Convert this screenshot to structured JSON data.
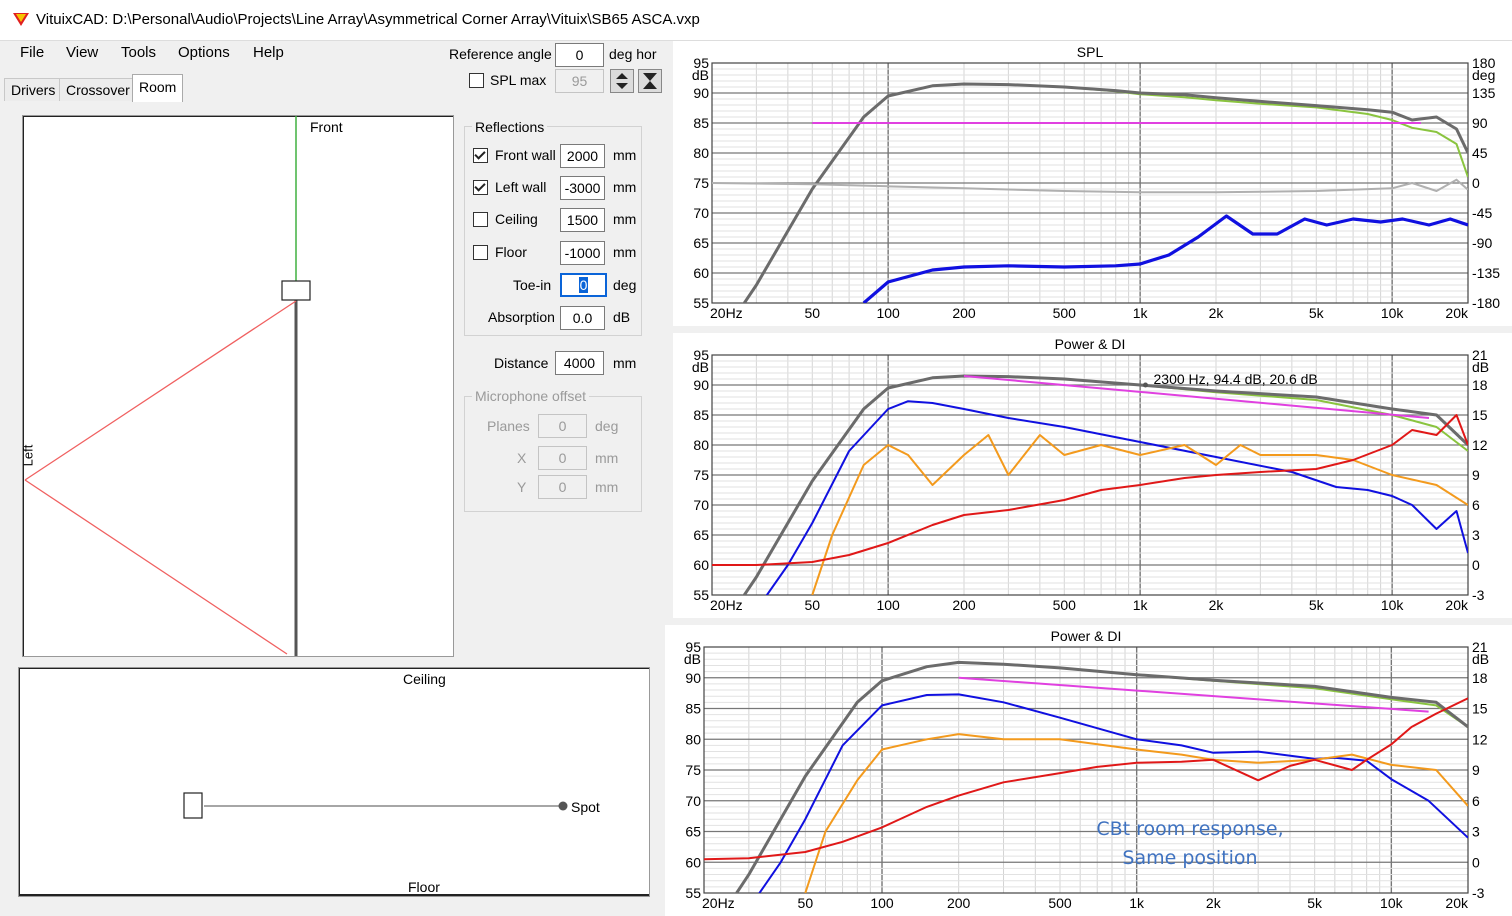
{
  "window": {
    "title": "VituixCAD: D:\\Personal\\Audio\\Projects\\Line Array\\Asymmetrical Corner Array\\Vituix\\SB65 ASCA.vxp",
    "icon": "vituixcad-logo-icon"
  },
  "menu": [
    "File",
    "View",
    "Tools",
    "Options",
    "Help"
  ],
  "tabs": [
    "Drivers",
    "Crossover",
    "Room"
  ],
  "active_tab": "Room",
  "reference": {
    "label": "Reference angle",
    "value": "0",
    "unit": "deg hor",
    "spl_max_label": "SPL max",
    "spl_max_value": "95",
    "spl_max_checked": false
  },
  "reflections": {
    "title": "Reflections",
    "rows": [
      {
        "label": "Front wall",
        "value": "2000",
        "unit": "mm",
        "checked": true
      },
      {
        "label": "Left wall",
        "value": "-3000",
        "unit": "mm",
        "checked": true
      },
      {
        "label": "Ceiling",
        "value": "1500",
        "unit": "mm",
        "checked": false
      },
      {
        "label": "Floor",
        "value": "-1000",
        "unit": "mm",
        "checked": false
      }
    ],
    "toe_in": {
      "label": "Toe-in",
      "value": "0",
      "unit": "deg"
    },
    "absorption": {
      "label": "Absorption",
      "value": "0.0",
      "unit": "dB"
    }
  },
  "distance": {
    "label": "Distance",
    "value": "4000",
    "unit": "mm"
  },
  "mic_offset": {
    "title": "Microphone offset",
    "planes": {
      "label": "Planes",
      "value": "0",
      "unit": "deg"
    },
    "x": {
      "label": "X",
      "value": "0",
      "unit": "mm"
    },
    "y": {
      "label": "Y",
      "value": "0",
      "unit": "mm"
    }
  },
  "top_view": {
    "front_label": "Front",
    "left_label": "Left"
  },
  "side_view": {
    "ceiling_label": "Ceiling",
    "floor_label": "Floor",
    "spot_label": "Spot"
  },
  "colors": {
    "dark_gray": "#6b6b6b",
    "light_green": "#8ac43f",
    "magenta": "#e040e0",
    "blue": "#1010e0",
    "orange": "#f39a1d",
    "red": "#e01818",
    "light_gray": "#b0b0b0",
    "reflection_red": "#f06060",
    "wall_green": "#40b040"
  },
  "annotation": {
    "line1": "CBt room response,",
    "line2": "Same position",
    "color": "#3f72c0"
  },
  "chart_data": [
    {
      "type": "line",
      "title": "SPL",
      "x_scale": "log",
      "xlim": [
        20,
        20000
      ],
      "x_ticks": [
        "20Hz",
        "50",
        "100",
        "200",
        "500",
        "1k",
        "2k",
        "5k",
        "10k",
        "20k"
      ],
      "ylim": [
        55,
        95
      ],
      "y_ticks": [
        "95",
        "90",
        "85",
        "80",
        "75",
        "70",
        "65",
        "60",
        "55"
      ],
      "y_unit": "dB",
      "y2lim": [
        -180,
        180
      ],
      "y2_ticks": [
        "180",
        "135",
        "90",
        "45",
        "0",
        "-45",
        "-90",
        "-135",
        "-180"
      ],
      "y2_unit": "deg",
      "grid": true,
      "series": [
        {
          "color": "#8ac43f",
          "x": [
            20,
            30,
            50,
            80,
            100,
            150,
            200,
            300,
            500,
            800,
            1000,
            1500,
            2000,
            3000,
            5000,
            8000,
            10000,
            12000,
            15000,
            18000,
            20000
          ],
          "y": [
            47,
            58,
            74,
            86,
            89.5,
            91.2,
            91.5,
            91.4,
            91,
            90.3,
            89.8,
            89.3,
            88.8,
            88.2,
            87.6,
            86.5,
            85.5,
            84.2,
            83.5,
            81.5,
            76
          ]
        },
        {
          "color": "#6b6b6b",
          "x": [
            20,
            30,
            50,
            80,
            100,
            150,
            200,
            300,
            500,
            800,
            1000,
            1500,
            2000,
            3000,
            5000,
            8000,
            10000,
            12000,
            15000,
            18000,
            20000
          ],
          "y": [
            47,
            58,
            74,
            86,
            89.5,
            91.2,
            91.5,
            91.4,
            91,
            90.4,
            90,
            89.7,
            89.2,
            88.6,
            87.9,
            87.2,
            86.8,
            85.5,
            86,
            84,
            80
          ]
        },
        {
          "color": "#e040e0",
          "x": [
            50,
            13000
          ],
          "y": [
            85,
            85
          ]
        },
        {
          "color": "#b0b0b0",
          "axis": "right",
          "x": [
            20,
            50,
            100,
            200,
            500,
            1000,
            2000,
            5000,
            10000,
            12000,
            15000,
            18000,
            20000
          ],
          "y": [
            0,
            -2,
            -5,
            -8,
            -12,
            -14,
            -14,
            -12,
            -8,
            0,
            -12,
            5,
            -10
          ]
        },
        {
          "color": "#1010e0",
          "x": [
            80,
            100,
            150,
            200,
            300,
            500,
            800,
            1000,
            1300,
            1700,
            2200,
            2800,
            3500,
            4500,
            5500,
            7000,
            9000,
            11000,
            14000,
            17000,
            20000
          ],
          "y": [
            55,
            58.5,
            60.5,
            61,
            61.2,
            61,
            61.2,
            61.5,
            63,
            66,
            69.5,
            66.5,
            66.5,
            69,
            68,
            69,
            68.5,
            69,
            68,
            69,
            68
          ]
        }
      ]
    },
    {
      "type": "line",
      "title": "Power & DI",
      "x_scale": "log",
      "xlim": [
        20,
        20000
      ],
      "x_ticks": [
        "20Hz",
        "50",
        "100",
        "200",
        "500",
        "1k",
        "2k",
        "5k",
        "10k",
        "20k"
      ],
      "ylim": [
        55,
        95
      ],
      "y_ticks": [
        "95",
        "90",
        "85",
        "80",
        "75",
        "70",
        "65",
        "60",
        "55"
      ],
      "y_unit": "dB",
      "y2lim": [
        -3,
        21
      ],
      "y2_ticks": [
        "21",
        "18",
        "15",
        "12",
        "9",
        "6",
        "3",
        "0",
        "-3"
      ],
      "y2_unit": "dB",
      "grid": true,
      "cursor_readout": "2300 Hz, 94.4 dB, 20.6 dB",
      "series": [
        {
          "color": "#8ac43f",
          "x": [
            20,
            30,
            50,
            80,
            100,
            150,
            200,
            300,
            500,
            1000,
            2000,
            5000,
            10000,
            15000,
            20000
          ],
          "y": [
            47,
            58,
            74,
            86,
            89.5,
            91.2,
            91.5,
            91.4,
            91,
            90,
            88.8,
            87.5,
            85,
            83,
            79
          ]
        },
        {
          "color": "#6b6b6b",
          "x": [
            20,
            30,
            50,
            80,
            100,
            150,
            200,
            300,
            500,
            1000,
            2000,
            5000,
            10000,
            15000,
            20000
          ],
          "y": [
            47,
            58,
            74,
            86,
            89.5,
            91.2,
            91.5,
            91.4,
            91,
            90,
            89,
            88,
            86,
            85,
            80
          ]
        },
        {
          "color": "#e040e0",
          "x": [
            200,
            14000
          ],
          "y": [
            91.5,
            84.5
          ]
        },
        {
          "color": "#1010e0",
          "x": [
            20,
            30,
            40,
            50,
            70,
            100,
            120,
            150,
            200,
            300,
            500,
            1000,
            2000,
            4000,
            6000,
            8000,
            10000,
            12000,
            15000,
            18000,
            20000
          ],
          "y": [
            47,
            52.5,
            60,
            67,
            79,
            86,
            87.3,
            87,
            86,
            84.5,
            83,
            80.5,
            78,
            75.5,
            73,
            72.5,
            71.5,
            70,
            66,
            69,
            62
          ]
        },
        {
          "color": "#f39a1d",
          "axis": "right",
          "x": [
            50,
            60,
            80,
            100,
            120,
            150,
            200,
            250,
            300,
            400,
            500,
            700,
            1000,
            1500,
            2000,
            2500,
            3000,
            5000,
            7000,
            10000,
            15000,
            20000
          ],
          "y": [
            -3,
            3,
            10,
            12,
            11,
            8,
            11,
            13,
            9,
            13,
            11,
            12,
            11,
            12,
            10,
            12,
            11,
            11,
            10.5,
            9,
            8,
            6
          ]
        },
        {
          "color": "#e01818",
          "axis": "right",
          "x": [
            20,
            30,
            50,
            70,
            100,
            150,
            200,
            300,
            500,
            700,
            1000,
            1500,
            2000,
            3000,
            5000,
            7000,
            10000,
            12000,
            15000,
            18000,
            20000
          ],
          "y": [
            0,
            0,
            0.3,
            1,
            2.2,
            4,
            5,
            5.5,
            6.5,
            7.5,
            8,
            8.7,
            9,
            9.3,
            9.6,
            10.5,
            12,
            13.5,
            13,
            15,
            12
          ]
        }
      ]
    },
    {
      "type": "line",
      "title": "Power & DI",
      "x_scale": "log",
      "xlim": [
        20,
        20000
      ],
      "x_ticks": [
        "20Hz",
        "50",
        "100",
        "200",
        "500",
        "1k",
        "2k",
        "5k",
        "10k",
        "20k"
      ],
      "ylim": [
        55,
        95
      ],
      "y_ticks": [
        "95",
        "90",
        "85",
        "80",
        "75",
        "70",
        "65",
        "60",
        "55"
      ],
      "y_unit": "dB",
      "y2lim": [
        -3,
        21
      ],
      "y2_ticks": [
        "21",
        "18",
        "15",
        "12",
        "9",
        "6",
        "3",
        "0",
        "-3"
      ],
      "y2_unit": "dB",
      "grid": true,
      "series": [
        {
          "color": "#8ac43f",
          "x": [
            20,
            30,
            50,
            80,
            100,
            150,
            200,
            300,
            500,
            1000,
            2000,
            5000,
            10000,
            15000,
            20000
          ],
          "y": [
            47,
            58,
            74,
            86,
            89.5,
            91.8,
            92.5,
            92.2,
            91.6,
            90.5,
            89.5,
            88.3,
            86.5,
            85.5,
            82
          ]
        },
        {
          "color": "#6b6b6b",
          "x": [
            20,
            30,
            50,
            80,
            100,
            150,
            200,
            300,
            500,
            1000,
            2000,
            5000,
            10000,
            15000,
            20000
          ],
          "y": [
            47,
            58,
            74,
            86,
            89.5,
            91.8,
            92.5,
            92.2,
            91.6,
            90.5,
            89.6,
            88.6,
            86.8,
            86,
            82
          ]
        },
        {
          "color": "#e040e0",
          "x": [
            200,
            14000
          ],
          "y": [
            90,
            84.5
          ]
        },
        {
          "color": "#1010e0",
          "x": [
            20,
            30,
            40,
            50,
            70,
            100,
            150,
            200,
            300,
            500,
            1000,
            1500,
            2000,
            3000,
            5000,
            6000,
            8000,
            10000,
            14000,
            20000
          ],
          "y": [
            47,
            52.5,
            60,
            67,
            79,
            85.5,
            87.2,
            87.3,
            86,
            83.5,
            80,
            79,
            77.8,
            78,
            76.8,
            77,
            76.5,
            73.5,
            70,
            64
          ]
        },
        {
          "color": "#f39a1d",
          "axis": "right",
          "x": [
            50,
            60,
            80,
            100,
            150,
            200,
            300,
            500,
            1000,
            1500,
            2000,
            3000,
            5000,
            7000,
            10000,
            15000,
            20000
          ],
          "y": [
            -3,
            3,
            8,
            11,
            12,
            12.5,
            12,
            12,
            11,
            10.5,
            10,
            9.7,
            10,
            10.5,
            9.5,
            9,
            5.5
          ]
        },
        {
          "color": "#e01818",
          "axis": "right",
          "x": [
            20,
            30,
            50,
            70,
            100,
            150,
            200,
            300,
            500,
            700,
            1000,
            1500,
            2000,
            3000,
            4000,
            5000,
            7000,
            8000,
            10000,
            12000,
            15000,
            20000
          ],
          "y": [
            0.3,
            0.4,
            1,
            2,
            3.4,
            5.4,
            6.5,
            7.8,
            8.7,
            9.3,
            9.7,
            9.8,
            10,
            8,
            9.4,
            10,
            9,
            10,
            11.5,
            13.2,
            14.5,
            16
          ]
        }
      ]
    }
  ]
}
